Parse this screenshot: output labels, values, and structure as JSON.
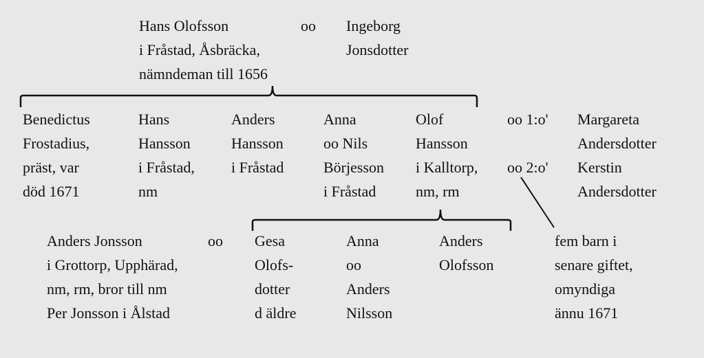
{
  "parents": {
    "father": [
      "Hans Olofsson",
      "i Fråstad, Åsbräcka,",
      "nämndeman till 1656"
    ],
    "marriage": "oo",
    "mother": [
      "Ingeborg",
      "Jonsdotter"
    ]
  },
  "children": [
    [
      "Benedictus",
      "Frostadius,",
      "präst, var",
      "död 1671"
    ],
    [
      "Hans",
      "Hansson",
      "i Fråstad,",
      "nm"
    ],
    [
      "Anders",
      "Hansson",
      "i Fråstad"
    ],
    [
      "Anna",
      "oo Nils",
      "Börjesson",
      "i Fråstad"
    ],
    [
      "Olof",
      "Hansson",
      "i Kalltorp,",
      "nm, rm"
    ]
  ],
  "olof_marriages": {
    "first_marker": "oo 1:o'",
    "second_marker": "oo 2:o'",
    "first_wife": [
      "Margareta",
      "Andersdotter"
    ],
    "second_wife": [
      "Kerstin",
      "Andersdotter"
    ]
  },
  "grandchildren": {
    "spouse": [
      "Anders Jonsson",
      "i Grottorp, Upphärad,",
      "nm, rm, bror till nm",
      "Per Jonsson i Ålstad"
    ],
    "spouse_marker": "oo",
    "first_marriage_children": [
      [
        "Gesa",
        "Olofs-",
        "dotter",
        "d äldre"
      ],
      [
        "Anna",
        "oo",
        "Anders",
        "Nilsson"
      ],
      [
        "Anders",
        "Olofsson"
      ]
    ],
    "second_marriage_children": [
      "fem barn i",
      "senare giftet,",
      "omyndiga",
      "ännu 1671"
    ]
  }
}
